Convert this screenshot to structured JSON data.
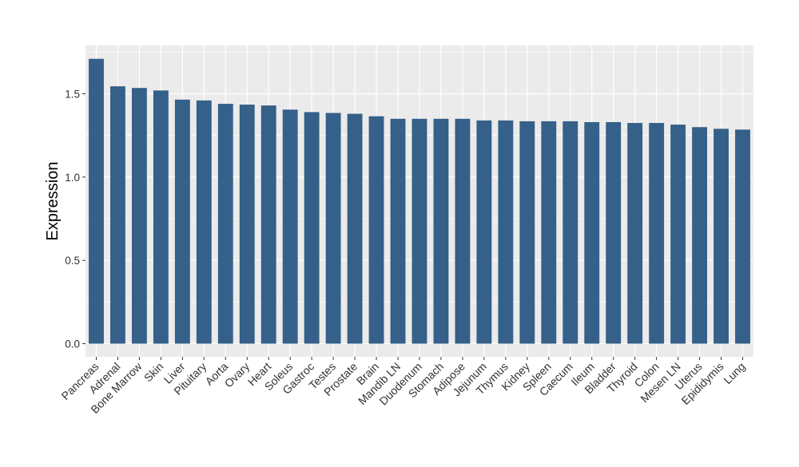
{
  "chart_data": {
    "type": "bar",
    "title": "",
    "xlabel": "",
    "ylabel": "Expression",
    "ylim": [
      0,
      1.75
    ],
    "yticks": [
      "0.0",
      "0.5",
      "1.0",
      "1.5"
    ],
    "ytick_values": [
      0,
      0.5,
      1.0,
      1.5
    ],
    "grid": true,
    "legend": "none",
    "colors": {
      "bar": "#356089",
      "panel": "#ebebeb",
      "grid": "#ffffff",
      "tick": "#333333"
    },
    "categories": [
      "Pancreas",
      "Adrenal",
      "Bone Marrow",
      "Skin",
      "Liver",
      "Pituitary",
      "Aorta",
      "Ovary",
      "Heart",
      "Soleus",
      "Gastroc",
      "Testes",
      "Prostate",
      "Brain",
      "Mandib LN",
      "Duodenum",
      "Stomach",
      "Adipose",
      "Jejunum",
      "Thymus",
      "Kidney",
      "Spleen",
      "Caecum",
      "Ileum",
      "Bladder",
      "Thyroid",
      "Colon",
      "Mesen LN",
      "Uterus",
      "Epididymis",
      "Lung"
    ],
    "values": [
      1.71,
      1.545,
      1.535,
      1.52,
      1.465,
      1.46,
      1.44,
      1.435,
      1.43,
      1.405,
      1.39,
      1.385,
      1.38,
      1.365,
      1.35,
      1.35,
      1.35,
      1.35,
      1.34,
      1.34,
      1.335,
      1.335,
      1.335,
      1.33,
      1.33,
      1.325,
      1.325,
      1.315,
      1.3,
      1.29,
      1.285
    ]
  }
}
